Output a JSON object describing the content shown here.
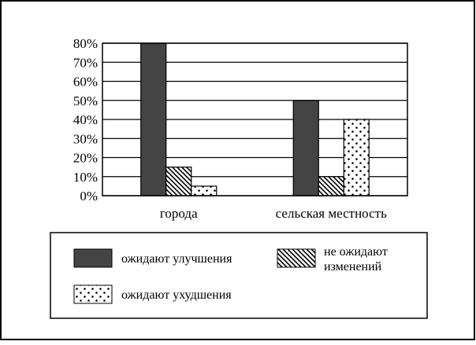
{
  "chart_data": {
    "type": "bar",
    "categories": [
      "города",
      "сельская местность"
    ],
    "series": [
      {
        "name": "ожидают улучшения",
        "values": [
          80,
          50
        ],
        "fill": "solid"
      },
      {
        "name": "не ожидают изменений",
        "values": [
          15,
          10
        ],
        "fill": "hatch"
      },
      {
        "name": "ожидают ухудшения",
        "values": [
          5,
          40
        ],
        "fill": "dots"
      }
    ],
    "y_ticks": [
      "0%",
      "10%",
      "20%",
      "30%",
      "40%",
      "50%",
      "60%",
      "70%",
      "80%"
    ],
    "ylim": [
      0,
      80
    ],
    "grid": true,
    "legend_position": "bottom",
    "colors": {
      "solid": "#444444",
      "stroke": "#000000",
      "background": "#ffffff"
    }
  },
  "legend": {
    "item1": "ожидают улучшения",
    "item2_line1": "не ожидают",
    "item2_line2": "изменений",
    "item3": "ожидают ухудшения"
  }
}
